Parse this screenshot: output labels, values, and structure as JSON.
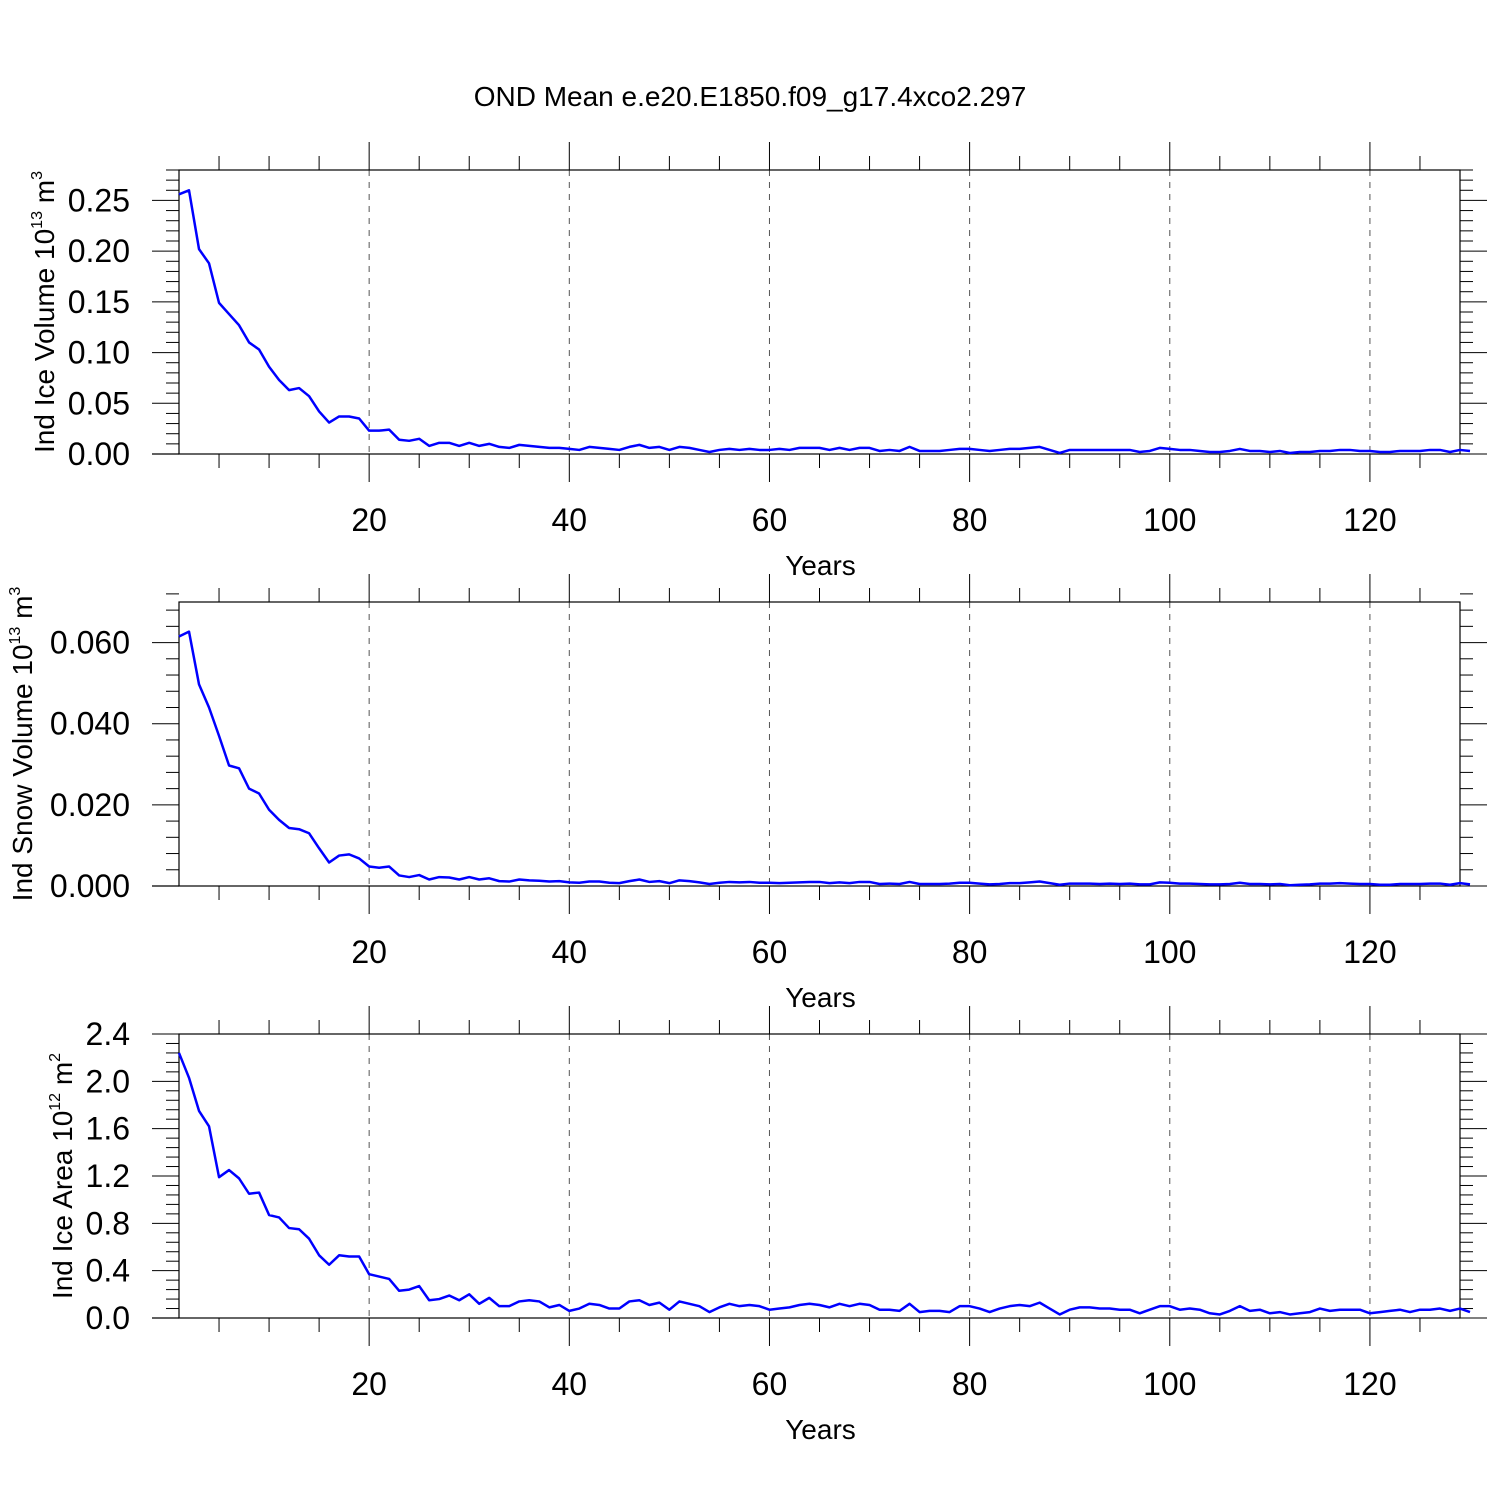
{
  "title": "OND Mean e.e20.E1850.f09_g17.4xco2.297",
  "colors": {
    "line": "#0000ff",
    "axes": "#000000",
    "grid": "#555555"
  },
  "chart_data": [
    {
      "type": "line",
      "ylabel_main": "Ind Ice Volume 10",
      "ylabel_exp": "13",
      "ylabel_unit": " m",
      "ylabel_unit_exp": "3",
      "xlabel": "Years",
      "xlim": [
        1,
        129
      ],
      "ylim": [
        0,
        0.28
      ],
      "xticks": [
        20,
        40,
        60,
        80,
        100,
        120
      ],
      "xtick_labels": [
        "20",
        "40",
        "60",
        "80",
        "100",
        "120"
      ],
      "yticks": [
        0,
        0.05,
        0.1,
        0.15,
        0.2,
        0.25
      ],
      "ytick_labels": [
        "0.00",
        "0.05",
        "0.10",
        "0.15",
        "0.20",
        "0.25"
      ],
      "grid": "vertical dashed at x ticks",
      "series": [
        {
          "values": [
            0.256,
            0.26,
            0.202,
            0.188,
            0.149,
            0.138,
            0.127,
            0.11,
            0.103,
            0.086,
            0.073,
            0.063,
            0.065,
            0.057,
            0.042,
            0.031,
            0.037,
            0.037,
            0.035,
            0.023,
            0.023,
            0.024,
            0.014,
            0.013,
            0.015,
            0.008,
            0.011,
            0.011,
            0.008,
            0.011,
            0.008,
            0.01,
            0.007,
            0.006,
            0.009,
            0.008,
            0.007,
            0.006,
            0.006,
            0.005,
            0.004,
            0.007,
            0.006,
            0.005,
            0.004,
            0.007,
            0.009,
            0.006,
            0.007,
            0.004,
            0.007,
            0.006,
            0.004,
            0.002,
            0.004,
            0.005,
            0.004,
            0.005,
            0.004,
            0.004,
            0.005,
            0.004,
            0.006,
            0.006,
            0.006,
            0.004,
            0.006,
            0.004,
            0.006,
            0.006,
            0.003,
            0.004,
            0.003,
            0.007,
            0.003,
            0.003,
            0.003,
            0.004,
            0.005,
            0.005,
            0.004,
            0.003,
            0.004,
            0.005,
            0.005,
            0.006,
            0.007,
            0.004,
            0.001,
            0.004,
            0.004,
            0.004,
            0.004,
            0.004,
            0.004,
            0.004,
            0.002,
            0.003,
            0.006,
            0.005,
            0.004,
            0.004,
            0.003,
            0.002,
            0.002,
            0.003,
            0.005,
            0.003,
            0.003,
            0.002,
            0.003,
            0.001,
            0.002,
            0.002,
            0.003,
            0.003,
            0.004,
            0.004,
            0.003,
            0.003,
            0.002,
            0.002,
            0.003,
            0.003,
            0.003,
            0.004,
            0.004,
            0.002,
            0.004,
            0.003
          ]
        }
      ]
    },
    {
      "type": "line",
      "ylabel_main": "Ind Snow Volume 10",
      "ylabel_exp": "13",
      "ylabel_unit": " m",
      "ylabel_unit_exp": "3",
      "xlabel": "Years",
      "xlim": [
        1,
        129
      ],
      "ylim": [
        0,
        0.07
      ],
      "xticks": [
        20,
        40,
        60,
        80,
        100,
        120
      ],
      "xtick_labels": [
        "20",
        "40",
        "60",
        "80",
        "100",
        "120"
      ],
      "yticks": [
        0,
        0.02,
        0.04,
        0.06
      ],
      "ytick_labels": [
        "0.000",
        "0.020",
        "0.040",
        "0.060"
      ],
      "grid": "vertical dashed at x ticks",
      "series": [
        {
          "values": [
            0.0615,
            0.0627,
            0.0497,
            0.044,
            0.037,
            0.0297,
            0.029,
            0.024,
            0.0228,
            0.0188,
            0.0163,
            0.0143,
            0.014,
            0.013,
            0.0093,
            0.0058,
            0.0075,
            0.0078,
            0.0068,
            0.0048,
            0.0045,
            0.0048,
            0.0026,
            0.0022,
            0.0027,
            0.0016,
            0.0022,
            0.0021,
            0.0016,
            0.0022,
            0.0016,
            0.0019,
            0.0012,
            0.0011,
            0.0016,
            0.0014,
            0.0013,
            0.0011,
            0.0012,
            0.0009,
            0.0008,
            0.0011,
            0.0011,
            0.0008,
            0.0007,
            0.0012,
            0.0016,
            0.001,
            0.0012,
            0.0007,
            0.0014,
            0.0012,
            0.0009,
            0.0005,
            0.0008,
            0.001,
            0.0009,
            0.001,
            0.0008,
            0.0008,
            0.0007,
            0.0008,
            0.0009,
            0.001,
            0.001,
            0.0007,
            0.0009,
            0.0007,
            0.001,
            0.001,
            0.0005,
            0.0006,
            0.0005,
            0.001,
            0.0005,
            0.0005,
            0.0005,
            0.0006,
            0.0008,
            0.0008,
            0.0006,
            0.0004,
            0.0005,
            0.0007,
            0.0007,
            0.0009,
            0.0011,
            0.0007,
            0.0003,
            0.0006,
            0.0006,
            0.0006,
            0.0005,
            0.0006,
            0.0005,
            0.0006,
            0.0004,
            0.0004,
            0.0009,
            0.0008,
            0.0006,
            0.0006,
            0.0005,
            0.0004,
            0.0004,
            0.0005,
            0.0008,
            0.0005,
            0.0005,
            0.0004,
            0.0005,
            0.0002,
            0.0003,
            0.0004,
            0.0006,
            0.0006,
            0.0007,
            0.0006,
            0.0005,
            0.0005,
            0.0003,
            0.0003,
            0.0005,
            0.0005,
            0.0005,
            0.0006,
            0.0006,
            0.0003,
            0.0007,
            0.0004
          ]
        }
      ]
    },
    {
      "type": "line",
      "ylabel_main": "Ind Ice Area 10",
      "ylabel_exp": "12",
      "ylabel_unit": " m",
      "ylabel_unit_exp": "2",
      "xlabel": "Years",
      "xlim": [
        1,
        129
      ],
      "ylim": [
        0,
        2.4
      ],
      "xticks": [
        20,
        40,
        60,
        80,
        100,
        120
      ],
      "xtick_labels": [
        "20",
        "40",
        "60",
        "80",
        "100",
        "120"
      ],
      "yticks": [
        0,
        0.4,
        0.8,
        1.2,
        1.6,
        2.0,
        2.4
      ],
      "ytick_labels": [
        "0.0",
        "0.4",
        "0.8",
        "1.2",
        "1.6",
        "2.0",
        "2.4"
      ],
      "grid": "vertical dashed at x ticks",
      "series": [
        {
          "values": [
            2.24,
            2.03,
            1.75,
            1.62,
            1.19,
            1.25,
            1.18,
            1.05,
            1.06,
            0.87,
            0.85,
            0.76,
            0.75,
            0.67,
            0.53,
            0.45,
            0.53,
            0.52,
            0.52,
            0.37,
            0.35,
            0.33,
            0.23,
            0.24,
            0.27,
            0.15,
            0.16,
            0.19,
            0.15,
            0.2,
            0.12,
            0.17,
            0.1,
            0.1,
            0.14,
            0.15,
            0.14,
            0.09,
            0.11,
            0.06,
            0.08,
            0.12,
            0.11,
            0.08,
            0.08,
            0.14,
            0.15,
            0.11,
            0.13,
            0.07,
            0.14,
            0.12,
            0.1,
            0.05,
            0.09,
            0.12,
            0.1,
            0.11,
            0.1,
            0.07,
            0.08,
            0.09,
            0.11,
            0.12,
            0.11,
            0.09,
            0.12,
            0.1,
            0.12,
            0.11,
            0.07,
            0.07,
            0.06,
            0.12,
            0.05,
            0.06,
            0.06,
            0.05,
            0.1,
            0.1,
            0.08,
            0.05,
            0.08,
            0.1,
            0.11,
            0.1,
            0.13,
            0.08,
            0.03,
            0.07,
            0.09,
            0.09,
            0.08,
            0.08,
            0.07,
            0.07,
            0.04,
            0.07,
            0.1,
            0.1,
            0.07,
            0.08,
            0.07,
            0.04,
            0.03,
            0.06,
            0.1,
            0.06,
            0.07,
            0.04,
            0.05,
            0.03,
            0.04,
            0.05,
            0.08,
            0.06,
            0.07,
            0.07,
            0.07,
            0.04,
            0.05,
            0.06,
            0.07,
            0.05,
            0.07,
            0.07,
            0.08,
            0.06,
            0.08,
            0.05
          ]
        }
      ]
    }
  ]
}
